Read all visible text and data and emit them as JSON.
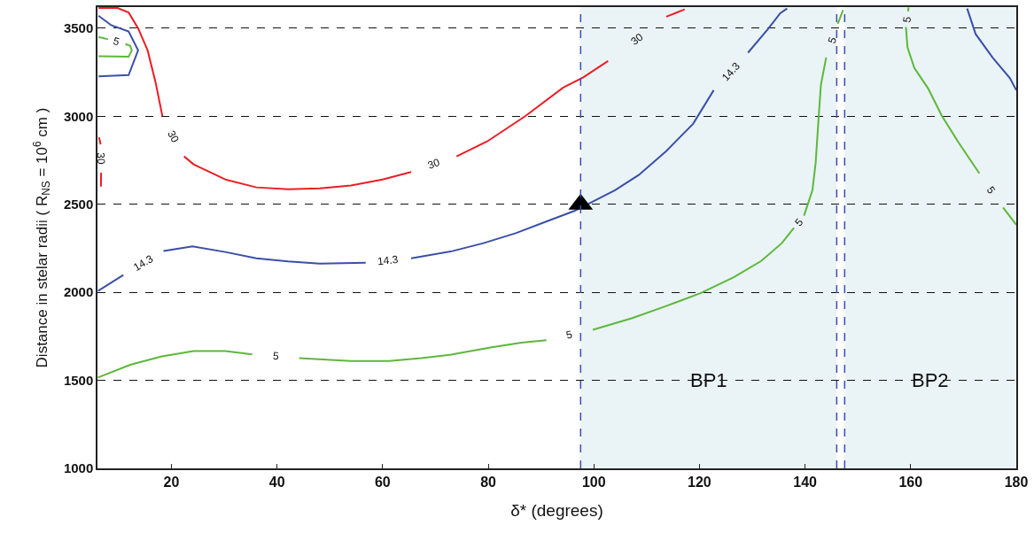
{
  "chart_data": {
    "type": "line",
    "xlabel": "δ* (degrees)",
    "ylabel": "Distance in stelar radii ( R$_{NS}$ = 10$^{6}$ cm )",
    "xlim": [
      6,
      180
    ],
    "xticks": [
      20,
      40,
      60,
      80,
      100,
      120,
      140,
      160,
      180
    ],
    "ylim": [
      1000,
      3620
    ],
    "yticks": [
      1000,
      1500,
      2000,
      2500,
      3000,
      3500
    ],
    "grid": "y",
    "legend": false,
    "line_style": "solid",
    "bands": [
      {
        "axis": "x",
        "from": 97.5,
        "to": 146,
        "label": "BP1",
        "color": "#eaf3f6"
      },
      {
        "axis": "x",
        "from": 147.5,
        "to": 180,
        "label": "BP2",
        "color": "#eaf3f6"
      }
    ],
    "ref_lines": [
      {
        "axis": "x",
        "value": 97.5,
        "color": "#3a4fa8",
        "line_style": "dashed"
      },
      {
        "axis": "x",
        "value": 146,
        "color": "#3a4fa8",
        "line_style": "dashed"
      },
      {
        "axis": "x",
        "value": 147.5,
        "color": "#3a4fa8",
        "line_style": "dashed"
      }
    ],
    "series": [
      {
        "name": "30",
        "color": "#ee1c24",
        "x": [
          6.3,
          6.6,
          null,
          6.7,
          6.65,
          null,
          null,
          6.2,
          9.8,
          11.9,
          13.7,
          15.5,
          17,
          18.3,
          null,
          22.4,
          24.2,
          30.2,
          36.1,
          42.1,
          48.1,
          54,
          60,
          65.4,
          null,
          74,
          79.8,
          87,
          94.2,
          98,
          102.7,
          null,
          113.7,
          117.2
        ],
        "values": [
          2880,
          2840,
          null,
          2680,
          2600,
          null,
          null,
          3615,
          3615,
          3589,
          3500,
          3374,
          3193,
          3000,
          null,
          2772,
          2727,
          2641,
          2596,
          2585,
          2590,
          2607,
          2641,
          2683,
          null,
          2772,
          2857,
          3000,
          3163,
          3221,
          3314,
          null,
          3565,
          3607
        ]
      },
      {
        "name": "14.3",
        "color": "#3a4fa8",
        "x": [
          6.1,
          10.9,
          null,
          18.5,
          24,
          30.2,
          36.1,
          42.1,
          48.1,
          56.8,
          null,
          65.4,
          73.2,
          79.1,
          85.2,
          91.2,
          96.3,
          99.5,
          104,
          108.5,
          113.7,
          118.8,
          122.7,
          null,
          129.2,
          133,
          135.3,
          136.6
        ],
        "values": [
          2008,
          2098,
          null,
          2234,
          2261,
          2229,
          2193,
          2175,
          2163,
          2168,
          null,
          2193,
          2234,
          2279,
          2336,
          2404,
          2462,
          2511,
          2580,
          2666,
          2802,
          2957,
          3148,
          null,
          3361,
          3496,
          3585,
          3612
        ]
      },
      {
        "color": "#3a4fa8",
        "x": [
          6.2,
          8.6,
          11.9,
          13.7,
          11.9,
          6.2
        ],
        "values": [
          3571,
          3517,
          3481,
          3374,
          3234,
          3227
        ]
      },
      {
        "color": "#3a4fa8",
        "x": [
          170.7,
          172.3,
          175.5,
          178.8,
          180
        ],
        "values": [
          3612,
          3467,
          3334,
          3216,
          3148
        ]
      },
      {
        "name": "5",
        "color": "#5cb83a",
        "x": [
          6.1,
          12.2,
          18.2,
          24.2,
          30.2,
          35.3,
          null,
          44.2,
          54,
          61.2,
          67.3,
          73.2,
          80.4,
          86.3,
          91,
          null,
          99.8,
          107.3,
          113.7,
          120.2,
          126.5,
          131.7,
          135.6,
          137.9,
          null,
          139.8,
          141.4,
          142,
          142.6,
          143,
          144,
          null,
          146.2,
          147.2
        ],
        "values": [
          1516,
          1588,
          1636,
          1666,
          1666,
          1647,
          null,
          1626,
          1610,
          1610,
          1626,
          1647,
          1686,
          1714,
          1728,
          null,
          1787,
          1854,
          1922,
          1995,
          2086,
          2178,
          2279,
          2366,
          null,
          2435,
          2580,
          2733,
          3003,
          3178,
          3334,
          null,
          3525,
          3603
        ]
      },
      {
        "name": "5",
        "color": "#5cb83a",
        "x": [
          6.2,
          8,
          null,
          11.3,
          12.2,
          12.5,
          11.9,
          6.2
        ],
        "values": [
          3450,
          3437,
          null,
          3410,
          3400,
          3374,
          3338,
          3341
        ]
      },
      {
        "name": "5",
        "color": "#5cb83a",
        "x": [
          159.6,
          159.5,
          null,
          159.1,
          159.4,
          160.7,
          163.3,
          165.9,
          169.1,
          173,
          null,
          177.5,
          180
        ],
        "values": [
          3618,
          3595,
          null,
          3506,
          3391,
          3274,
          3158,
          3003,
          2849,
          2676,
          null,
          2482,
          2384
        ]
      },
      {
        "type": "scatter",
        "color": "#000000",
        "marker": "triangle",
        "x": [
          97.5
        ],
        "values": [
          2500
        ]
      }
    ]
  }
}
